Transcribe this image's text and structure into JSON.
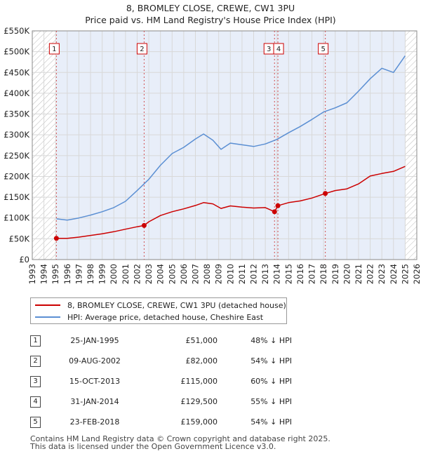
{
  "chart_data": {
    "type": "line",
    "title": "8, BROMLEY CLOSE, CREWE, CW1 3PU",
    "subtitle": "Price paid vs. HM Land Registry's House Price Index (HPI)",
    "ylim": [
      0,
      550000
    ],
    "xlim": [
      1993,
      2026
    ],
    "y_ticks": [
      0,
      50000,
      100000,
      150000,
      200000,
      250000,
      300000,
      350000,
      400000,
      450000,
      500000,
      550000
    ],
    "y_tick_labels": [
      "£0",
      "£50K",
      "£100K",
      "£150K",
      "£200K",
      "£250K",
      "£300K",
      "£350K",
      "£400K",
      "£450K",
      "£500K",
      "£550K"
    ],
    "x_ticks": [
      1993,
      1994,
      1995,
      1996,
      1997,
      1998,
      1999,
      2000,
      2001,
      2002,
      2003,
      2004,
      2005,
      2006,
      2007,
      2008,
      2009,
      2010,
      2011,
      2012,
      2013,
      2014,
      2015,
      2016,
      2017,
      2018,
      2019,
      2020,
      2021,
      2022,
      2023,
      2024,
      2025,
      2026
    ],
    "x_tick_labels": [
      "1993",
      "1994",
      "1995",
      "1996",
      "1997",
      "1998",
      "1999",
      "2000",
      "2001",
      "2002",
      "2003",
      "2004",
      "2005",
      "2006",
      "2007",
      "2008",
      "2009",
      "2010",
      "2011",
      "2012",
      "2013",
      "2014",
      "2015",
      "2016",
      "2017",
      "2018",
      "2019",
      "2020",
      "2021",
      "2022",
      "2023",
      "2024",
      "2025",
      "2026"
    ],
    "hatch_ranges": [
      [
        1993,
        1995.07
      ],
      [
        2025.0,
        2026
      ]
    ],
    "shade_range": [
      1995.07,
      2025.0
    ],
    "series": [
      {
        "name": "8, BROMLEY CLOSE, CREWE, CW1 3PU (detached house)",
        "color": "#cc0000",
        "x": [
          1995.07,
          1996,
          1997,
          1998,
          1999,
          2000,
          2001,
          2002,
          2002.6,
          2003,
          2004,
          2005,
          2006,
          2007,
          2007.7,
          2008.5,
          2009.2,
          2010,
          2011,
          2012,
          2013,
          2013.79,
          2014.08,
          2015,
          2016,
          2017,
          2018.15,
          2019,
          2020,
          2021,
          2022,
          2023,
          2024,
          2025.0
        ],
        "values": [
          51000,
          51000,
          54000,
          58000,
          62000,
          67000,
          73000,
          79000,
          82000,
          91000,
          106000,
          115000,
          122000,
          130000,
          137000,
          134000,
          123000,
          129000,
          126000,
          124000,
          125000,
          115000,
          129500,
          137000,
          141000,
          148000,
          159000,
          166000,
          170000,
          182000,
          201000,
          207000,
          212000,
          224000
        ]
      },
      {
        "name": "HPI: Average price, detached house, Cheshire East",
        "color": "#5b8fd3",
        "x": [
          1995.07,
          1996,
          1997,
          1998,
          1999,
          2000,
          2001,
          2002,
          2003,
          2004,
          2005,
          2006,
          2007,
          2007.7,
          2008.5,
          2009.2,
          2010,
          2011,
          2012,
          2013,
          2014,
          2015,
          2016,
          2017,
          2018,
          2019,
          2020,
          2021,
          2022,
          2023,
          2024,
          2025.0
        ],
        "values": [
          98000,
          95000,
          100000,
          107000,
          115000,
          125000,
          140000,
          166000,
          193000,
          227000,
          255000,
          270000,
          290000,
          302000,
          287000,
          265000,
          280000,
          276000,
          272000,
          278000,
          289000,
          305000,
          320000,
          337000,
          355000,
          365000,
          377000,
          405000,
          435000,
          460000,
          450000,
          490000
        ]
      }
    ],
    "sales": [
      {
        "id": "1",
        "x": 1995.07,
        "value": 51000
      },
      {
        "id": "2",
        "x": 2002.6,
        "value": 82000
      },
      {
        "id": "3",
        "x": 2013.79,
        "value": 115000
      },
      {
        "id": "4",
        "x": 2014.08,
        "value": 129500
      },
      {
        "id": "5",
        "x": 2018.15,
        "value": 159000
      }
    ]
  },
  "legend": {
    "property_label": "8, BROMLEY CLOSE, CREWE, CW1 3PU (detached house)",
    "hpi_label": "HPI: Average price, detached house, Cheshire East"
  },
  "transactions": [
    {
      "num": "1",
      "date": "25-JAN-1995",
      "price": "£51,000",
      "hpi": "48% ↓ HPI"
    },
    {
      "num": "2",
      "date": "09-AUG-2002",
      "price": "£82,000",
      "hpi": "54% ↓ HPI"
    },
    {
      "num": "3",
      "date": "15-OCT-2013",
      "price": "£115,000",
      "hpi": "60% ↓ HPI"
    },
    {
      "num": "4",
      "date": "31-JAN-2014",
      "price": "£129,500",
      "hpi": "55% ↓ HPI"
    },
    {
      "num": "5",
      "date": "23-FEB-2018",
      "price": "£159,000",
      "hpi": "54% ↓ HPI"
    }
  ],
  "footer": {
    "line1": "Contains HM Land Registry data © Crown copyright and database right 2025.",
    "line2": "This data is licensed under the Open Government Licence v3.0."
  }
}
